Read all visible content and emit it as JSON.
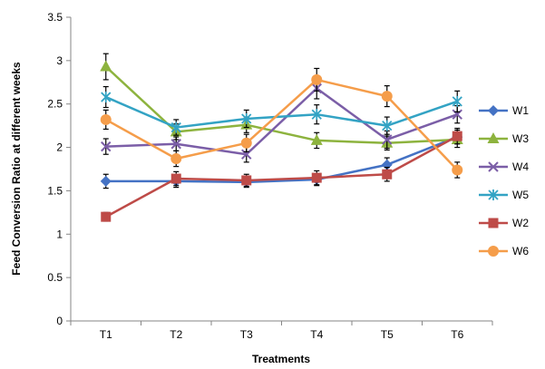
{
  "chart_data": {
    "type": "line",
    "xlabel": "Treatments",
    "ylabel": "Feed Conversion Ratio at different weeks",
    "categories": [
      "T1",
      "T2",
      "T3",
      "T4",
      "T5",
      "T6"
    ],
    "ylim": [
      0,
      3.5
    ],
    "yticks": [
      "0",
      "0.5",
      "1",
      "1.5",
      "2",
      "2.5",
      "3",
      "3.5"
    ],
    "grid": false,
    "legend_position": "right",
    "series": [
      {
        "name": "W1",
        "color": "#4472C4",
        "marker": "diamond",
        "values": [
          1.61,
          1.61,
          1.6,
          1.63,
          1.8,
          2.12
        ],
        "errors": [
          0.08,
          0.07,
          0.06,
          0.07,
          0.08,
          0.08
        ]
      },
      {
        "name": "W3",
        "color": "#8DB33E",
        "marker": "triangle",
        "values": [
          2.93,
          2.18,
          2.26,
          2.08,
          2.05,
          2.09
        ],
        "errors": [
          0.15,
          0.09,
          0.09,
          0.09,
          0.08,
          0.09
        ]
      },
      {
        "name": "W4",
        "color": "#7B5EA7",
        "marker": "x",
        "values": [
          2.01,
          2.04,
          1.92,
          2.68,
          2.09,
          2.38
        ],
        "errors": [
          0.09,
          0.08,
          0.09,
          0.12,
          0.1,
          0.1
        ]
      },
      {
        "name": "W5",
        "color": "#33A3C4",
        "marker": "star",
        "values": [
          2.58,
          2.23,
          2.33,
          2.38,
          2.25,
          2.53
        ],
        "errors": [
          0.12,
          0.09,
          0.1,
          0.11,
          0.1,
          0.12
        ]
      },
      {
        "name": "W2",
        "color": "#BE4B48",
        "marker": "square",
        "values": [
          1.2,
          1.64,
          1.62,
          1.65,
          1.69,
          2.13
        ],
        "errors": [
          0.05,
          0.08,
          0.07,
          0.08,
          0.08,
          0.09
        ]
      },
      {
        "name": "W6",
        "color": "#F59D4A",
        "marker": "circle",
        "values": [
          2.32,
          1.87,
          2.05,
          2.78,
          2.59,
          1.74
        ],
        "errors": [
          0.11,
          0.09,
          0.1,
          0.13,
          0.12,
          0.09
        ]
      }
    ]
  }
}
